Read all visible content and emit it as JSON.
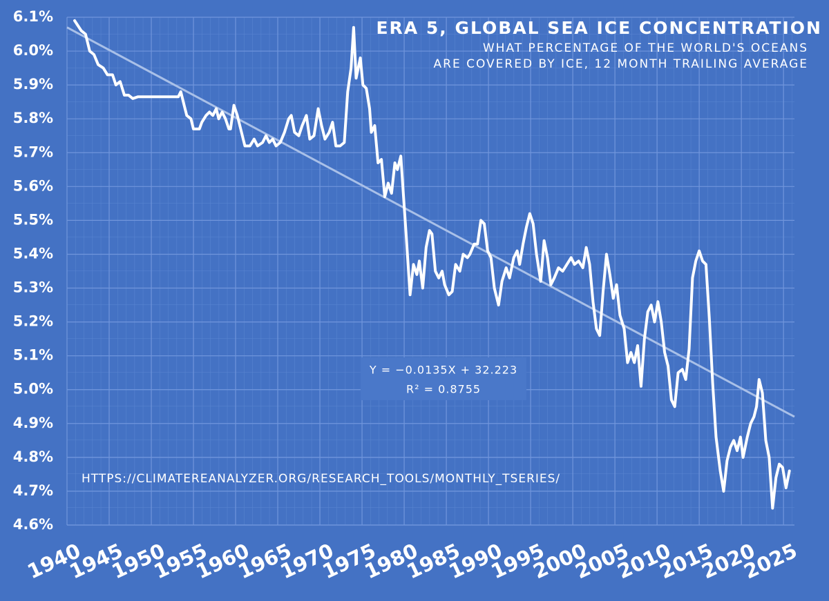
{
  "chart_data": {
    "type": "line",
    "title": "ERA 5, GLOBAL SEA ICE CONCENTRATION",
    "subtitle": [
      "WHAT PERCENTAGE OF THE WORLD'S OCEANS",
      "ARE COVERED BY ICE, 12 MONTH TRAILING AVERAGE"
    ],
    "annotations": [
      "Y = −0.0135X + 32.223",
      "R² = 0.8755",
      "HTTPS://CLIMATEREANALYZER.ORG/RESEARCH_TOOLS/MONTHLY_TSERIES/"
    ],
    "color": "#ffffff",
    "trend_color": "#a9c0e8",
    "grid": true,
    "xlim": [
      1940,
      2026.3
    ],
    "xticks": [
      1940,
      1945,
      1950,
      1955,
      1960,
      1965,
      1970,
      1975,
      1980,
      1985,
      1990,
      1995,
      2000,
      2005,
      2010,
      2015,
      2020,
      2025
    ],
    "ylim": [
      4.6,
      6.1
    ],
    "yticks": [
      {
        "value": 4.6,
        "label": "4.6%"
      },
      {
        "value": 4.7,
        "label": "4.7%"
      },
      {
        "value": 4.8,
        "label": "4.8%"
      },
      {
        "value": 4.9,
        "label": "4.9%"
      },
      {
        "value": 5.0,
        "label": "5.0%"
      },
      {
        "value": 5.1,
        "label": "5.1%"
      },
      {
        "value": 5.2,
        "label": "5.2%"
      },
      {
        "value": 5.3,
        "label": "5.3%"
      },
      {
        "value": 5.4,
        "label": "5.4%"
      },
      {
        "value": 5.5,
        "label": "5.5%"
      },
      {
        "value": 5.6,
        "label": "5.6%"
      },
      {
        "value": 5.7,
        "label": "5.7%"
      },
      {
        "value": 5.8,
        "label": "5.8%"
      },
      {
        "value": 5.9,
        "label": "5.9%"
      },
      {
        "value": 6.0,
        "label": "6.0%"
      },
      {
        "value": 6.1,
        "label": "6.1%"
      }
    ],
    "trendline": {
      "x": [
        1940,
        2026.3
      ],
      "values": [
        6.07,
        4.92
      ]
    },
    "x": [
      1940.9,
      1941.7,
      1942.2,
      1942.7,
      1943.2,
      1943.7,
      1944.3,
      1944.8,
      1945.4,
      1945.8,
      1946.3,
      1946.8,
      1947.3,
      1947.8,
      1948.4,
      1953.2,
      1953.5,
      1953.9,
      1954.2,
      1954.7,
      1955.0,
      1955.7,
      1956.0,
      1956.5,
      1956.9,
      1957.3,
      1957.7,
      1958.0,
      1958.4,
      1958.8,
      1959.2,
      1959.4,
      1959.8,
      1960.2,
      1960.7,
      1961.1,
      1961.7,
      1962.2,
      1962.6,
      1963.2,
      1963.6,
      1964.0,
      1964.4,
      1964.8,
      1965.3,
      1965.8,
      1966.3,
      1966.6,
      1967.0,
      1967.5,
      1967.9,
      1968.4,
      1968.8,
      1969.3,
      1969.8,
      1970.2,
      1970.6,
      1971.1,
      1971.5,
      1971.9,
      1972.4,
      1972.9,
      1973.3,
      1973.7,
      1974.0,
      1974.3,
      1974.8,
      1975.1,
      1975.5,
      1975.9,
      1976.1,
      1976.5,
      1976.9,
      1977.3,
      1977.7,
      1978.1,
      1978.5,
      1978.9,
      1979.2,
      1979.6,
      1979.9,
      1980.2,
      1980.7,
      1981.1,
      1981.5,
      1981.8,
      1982.2,
      1982.6,
      1983.0,
      1983.3,
      1983.7,
      1984.1,
      1984.5,
      1984.8,
      1985.3,
      1985.7,
      1986.1,
      1986.6,
      1987.0,
      1987.5,
      1987.8,
      1988.3,
      1988.7,
      1989.1,
      1989.5,
      1989.9,
      1990.3,
      1990.7,
      1991.2,
      1991.6,
      1992.1,
      1992.5,
      1993.0,
      1993.4,
      1993.7,
      1994.1,
      1994.5,
      1994.9,
      1995.3,
      1995.7,
      1996.2,
      1996.6,
      1997.0,
      1997.4,
      1997.8,
      1998.3,
      1998.8,
      1999.3,
      1999.8,
      2000.2,
      2000.7,
      2001.2,
      2001.6,
      2002.0,
      2002.4,
      2002.8,
      2003.2,
      2003.6,
      2004.0,
      2004.4,
      2004.8,
      2005.2,
      2005.6,
      2006.1,
      2006.5,
      2006.9,
      2007.3,
      2007.7,
      2008.1,
      2008.5,
      2008.9,
      2009.3,
      2009.7,
      2010.1,
      2010.5,
      2010.9,
      2011.3,
      2011.7,
      2012.1,
      2012.5,
      2013.0,
      2013.4,
      2013.8,
      2014.2,
      2014.6,
      2015.0,
      2015.4,
      2015.8,
      2016.2,
      2016.6,
      2017.0,
      2017.5,
      2017.9,
      2018.3,
      2018.7,
      2019.1,
      2019.5,
      2019.9,
      2020.2,
      2020.7,
      2021.1,
      2021.5,
      2021.8,
      2022.1,
      2022.5,
      2022.9,
      2023.3,
      2023.7,
      2024.1,
      2024.5,
      2024.9,
      2025.3,
      2025.7
    ],
    "values": [
      6.09,
      6.06,
      6.05,
      6.0,
      5.99,
      5.96,
      5.95,
      5.93,
      5.93,
      5.9,
      5.91,
      5.87,
      5.87,
      5.86,
      5.865,
      5.865,
      5.88,
      5.84,
      5.81,
      5.8,
      5.77,
      5.77,
      5.79,
      5.81,
      5.82,
      5.81,
      5.83,
      5.8,
      5.82,
      5.8,
      5.77,
      5.77,
      5.84,
      5.81,
      5.76,
      5.72,
      5.72,
      5.74,
      5.72,
      5.73,
      5.75,
      5.73,
      5.74,
      5.72,
      5.73,
      5.76,
      5.8,
      5.81,
      5.76,
      5.75,
      5.78,
      5.81,
      5.74,
      5.75,
      5.83,
      5.78,
      5.74,
      5.76,
      5.79,
      5.72,
      5.72,
      5.73,
      5.88,
      5.95,
      6.07,
      5.92,
      5.98,
      5.9,
      5.89,
      5.83,
      5.76,
      5.78,
      5.67,
      5.68,
      5.57,
      5.61,
      5.58,
      5.67,
      5.65,
      5.69,
      5.58,
      5.47,
      5.28,
      5.37,
      5.34,
      5.38,
      5.3,
      5.42,
      5.47,
      5.46,
      5.35,
      5.33,
      5.35,
      5.31,
      5.28,
      5.29,
      5.37,
      5.35,
      5.4,
      5.39,
      5.4,
      5.43,
      5.43,
      5.5,
      5.49,
      5.41,
      5.39,
      5.3,
      5.25,
      5.32,
      5.36,
      5.33,
      5.39,
      5.41,
      5.37,
      5.43,
      5.48,
      5.52,
      5.49,
      5.4,
      5.32,
      5.44,
      5.39,
      5.31,
      5.33,
      5.36,
      5.35,
      5.37,
      5.39,
      5.37,
      5.38,
      5.36,
      5.42,
      5.37,
      5.26,
      5.18,
      5.16,
      5.29,
      5.4,
      5.34,
      5.27,
      5.31,
      5.22,
      5.18,
      5.08,
      5.11,
      5.08,
      5.13,
      5.01,
      5.15,
      5.23,
      5.25,
      5.2,
      5.26,
      5.2,
      5.11,
      5.07,
      4.97,
      4.95,
      5.05,
      5.06,
      5.03,
      5.12,
      5.33,
      5.38,
      5.41,
      5.38,
      5.37,
      5.21,
      5.02,
      4.86,
      4.76,
      4.7,
      4.79,
      4.83,
      4.85,
      4.82,
      4.86,
      4.8,
      4.86,
      4.9,
      4.92,
      4.95,
      5.03,
      4.99,
      4.85,
      4.8,
      4.65,
      4.74,
      4.78,
      4.77,
      4.71,
      4.76
    ]
  }
}
